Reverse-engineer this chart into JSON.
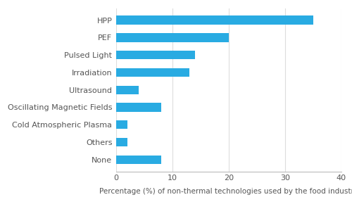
{
  "categories": [
    "None",
    "Others",
    "Cold Atmospheric Plasma",
    "Oscillating Magnetic Fields",
    "Ultrasound",
    "Irradiation",
    "Pulsed Light",
    "PEF",
    "HPP"
  ],
  "values": [
    8,
    2,
    2,
    8,
    4,
    13,
    14,
    20,
    35
  ],
  "bar_color": "#29ABE2",
  "xlim": [
    0,
    40
  ],
  "xticks": [
    0,
    10,
    20,
    30,
    40
  ],
  "xlabel": "Percentage (%) of non-thermal technologies used by the food industry",
  "xlabel_fontsize": 7.5,
  "tick_fontsize": 8,
  "label_fontsize": 8,
  "bar_height": 0.5,
  "background_color": "#ffffff",
  "grid_color": "#dddddd",
  "spine_color": "#bbbbbb",
  "text_color": "#555555"
}
